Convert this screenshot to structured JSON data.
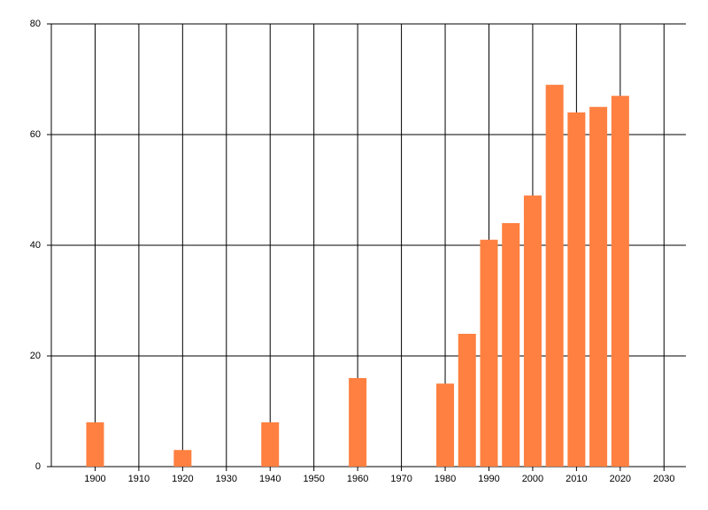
{
  "chart_data": {
    "type": "bar",
    "x": [
      1900,
      1920,
      1940,
      1960,
      1980,
      1985,
      1990,
      1995,
      2000,
      2005,
      2010,
      2015,
      2020
    ],
    "values": [
      8,
      3,
      8,
      16,
      15,
      24,
      41,
      44,
      49,
      69,
      64,
      65,
      67
    ],
    "color": "#ff8040",
    "xlim": [
      1890,
      2035
    ],
    "xticks": [
      1900,
      1910,
      1920,
      1930,
      1940,
      1950,
      1960,
      1970,
      1980,
      1990,
      2000,
      2010,
      2020,
      2030
    ],
    "ylim": [
      0,
      80
    ],
    "yticks": [
      0,
      20,
      40,
      60,
      80
    ],
    "grid": true
  }
}
